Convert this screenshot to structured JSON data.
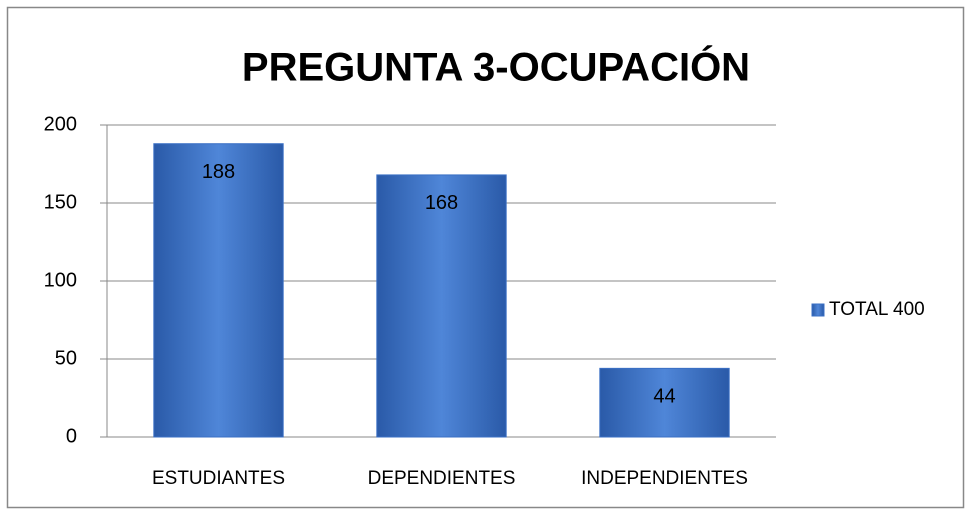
{
  "chart_data": {
    "type": "bar",
    "title": "PREGUNTA 3-OCUPACIÓN",
    "categories": [
      "ESTUDIANTES",
      "DEPENDIENTES",
      "INDEPENDIENTES"
    ],
    "series": [
      {
        "name": "TOTAL 400",
        "color": "#3a6fc4",
        "values": [
          188,
          168,
          44
        ]
      }
    ],
    "ylim": [
      0,
      200
    ],
    "yticks": [
      0,
      50,
      100,
      150,
      200
    ],
    "grid": true,
    "legend": "right"
  }
}
